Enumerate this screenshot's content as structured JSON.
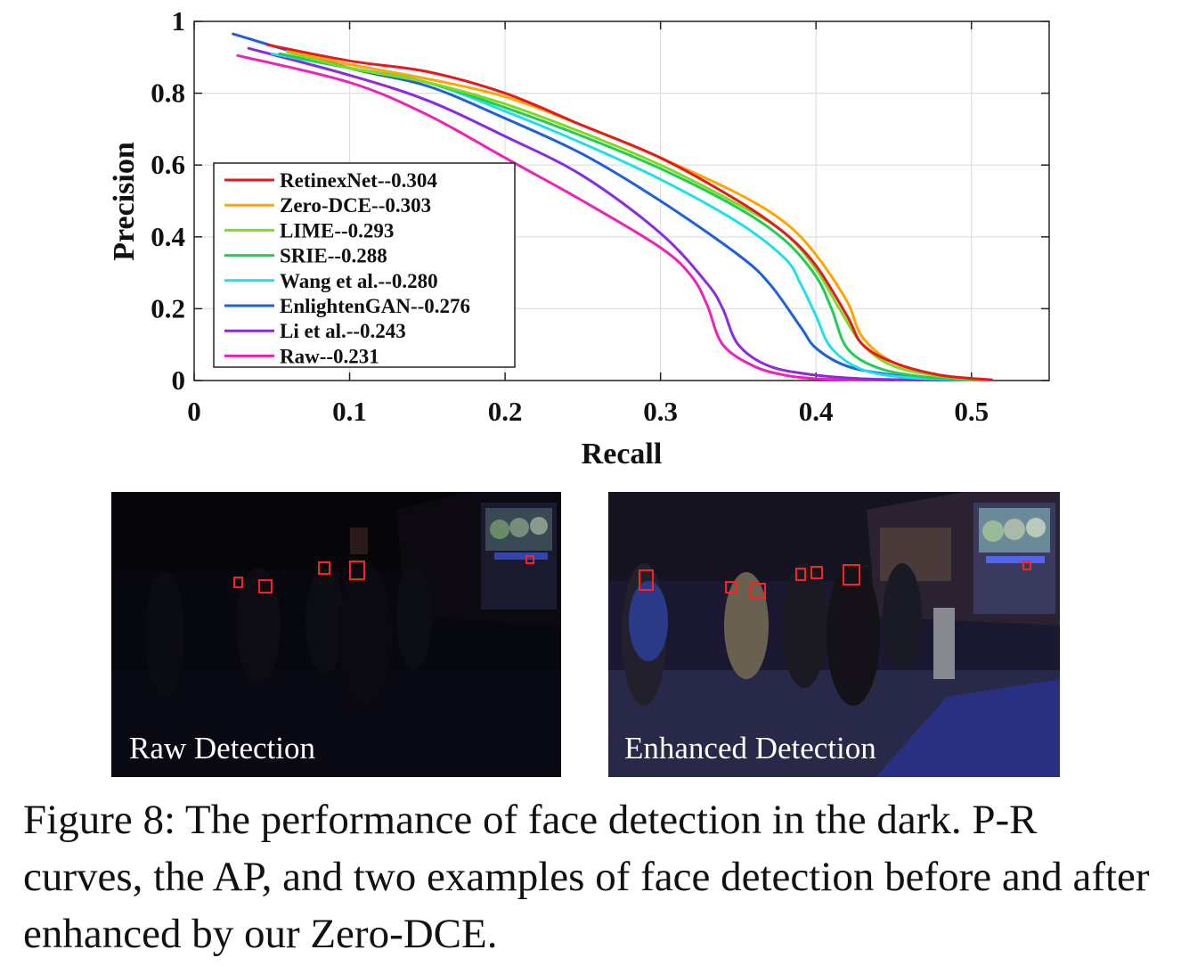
{
  "chart_data": {
    "type": "line",
    "xlabel": "Recall",
    "ylabel": "Precision",
    "xlim": [
      0,
      0.55
    ],
    "ylim": [
      0,
      1
    ],
    "xticks": [
      "0",
      "0.1",
      "0.2",
      "0.3",
      "0.4",
      "0.5"
    ],
    "yticks": [
      "0",
      "0.2",
      "0.4",
      "0.6",
      "0.8",
      "1"
    ],
    "grid": true,
    "legend_position": "lower-left",
    "series": [
      {
        "name": "RetinexNet--0.304",
        "color": "#e41a1c",
        "x": [
          0.047,
          0.1,
          0.15,
          0.2,
          0.25,
          0.3,
          0.35,
          0.38,
          0.4,
          0.42,
          0.43,
          0.45,
          0.48,
          0.513
        ],
        "y": [
          0.935,
          0.89,
          0.86,
          0.8,
          0.71,
          0.62,
          0.5,
          0.41,
          0.32,
          0.18,
          0.1,
          0.05,
          0.015,
          0.002
        ]
      },
      {
        "name": "Zero-DCE--0.303",
        "color": "#ffa500",
        "x": [
          0.06,
          0.1,
          0.15,
          0.2,
          0.25,
          0.3,
          0.35,
          0.38,
          0.4,
          0.42,
          0.43,
          0.45,
          0.48,
          0.51
        ],
        "y": [
          0.92,
          0.88,
          0.84,
          0.79,
          0.71,
          0.62,
          0.52,
          0.44,
          0.35,
          0.22,
          0.12,
          0.05,
          0.015,
          0.002
        ]
      },
      {
        "name": "LIME--0.293",
        "color": "#7ddc1f",
        "x": [
          0.06,
          0.1,
          0.15,
          0.2,
          0.25,
          0.3,
          0.35,
          0.38,
          0.4,
          0.415,
          0.43,
          0.45,
          0.48,
          0.508
        ],
        "y": [
          0.915,
          0.87,
          0.83,
          0.77,
          0.69,
          0.6,
          0.49,
          0.41,
          0.31,
          0.2,
          0.1,
          0.04,
          0.012,
          0.002
        ]
      },
      {
        "name": "SRIE--0.288",
        "color": "#22cc55",
        "x": [
          0.055,
          0.1,
          0.15,
          0.2,
          0.25,
          0.3,
          0.35,
          0.38,
          0.4,
          0.41,
          0.42,
          0.44,
          0.47,
          0.505
        ],
        "y": [
          0.91,
          0.87,
          0.83,
          0.76,
          0.68,
          0.59,
          0.48,
          0.39,
          0.29,
          0.2,
          0.09,
          0.035,
          0.01,
          0.002
        ]
      },
      {
        "name": "Wang et al.--0.280",
        "color": "#22ddee",
        "x": [
          0.05,
          0.1,
          0.15,
          0.2,
          0.25,
          0.3,
          0.35,
          0.38,
          0.39,
          0.4,
          0.41,
          0.43,
          0.46,
          0.5
        ],
        "y": [
          0.91,
          0.87,
          0.83,
          0.75,
          0.66,
          0.56,
          0.44,
          0.34,
          0.27,
          0.18,
          0.09,
          0.03,
          0.008,
          0.002
        ]
      },
      {
        "name": "EnlightenGAN--0.276",
        "color": "#1f5fd8",
        "x": [
          0.025,
          0.1,
          0.15,
          0.2,
          0.25,
          0.3,
          0.35,
          0.37,
          0.39,
          0.4,
          0.42,
          0.45,
          0.48,
          0.5
        ],
        "y": [
          0.965,
          0.87,
          0.82,
          0.73,
          0.63,
          0.5,
          0.35,
          0.27,
          0.15,
          0.09,
          0.04,
          0.015,
          0.005,
          0.002
        ]
      },
      {
        "name": "Li et al.--0.243",
        "color": "#8a2be2",
        "x": [
          0.035,
          0.1,
          0.15,
          0.2,
          0.25,
          0.3,
          0.33,
          0.34,
          0.35,
          0.37,
          0.4,
          0.43,
          0.46,
          0.48
        ],
        "y": [
          0.925,
          0.85,
          0.78,
          0.68,
          0.57,
          0.41,
          0.27,
          0.2,
          0.1,
          0.04,
          0.015,
          0.005,
          0.002,
          0.001
        ]
      },
      {
        "name": "Raw--0.231",
        "color": "#ee22bb",
        "x": [
          0.028,
          0.1,
          0.15,
          0.2,
          0.25,
          0.3,
          0.32,
          0.33,
          0.34,
          0.36,
          0.38,
          0.4,
          0.43,
          0.45
        ],
        "y": [
          0.905,
          0.83,
          0.74,
          0.62,
          0.5,
          0.37,
          0.29,
          0.21,
          0.1,
          0.04,
          0.015,
          0.005,
          0.002,
          0.001
        ]
      }
    ]
  },
  "photos": [
    {
      "label": "Raw Detection"
    },
    {
      "label": "Enhanced Detection"
    }
  ],
  "caption": "Figure 8: The performance of face detection in the dark. P-R curves, the AP, and two examples of face detection before and after enhanced by our Zero-DCE."
}
